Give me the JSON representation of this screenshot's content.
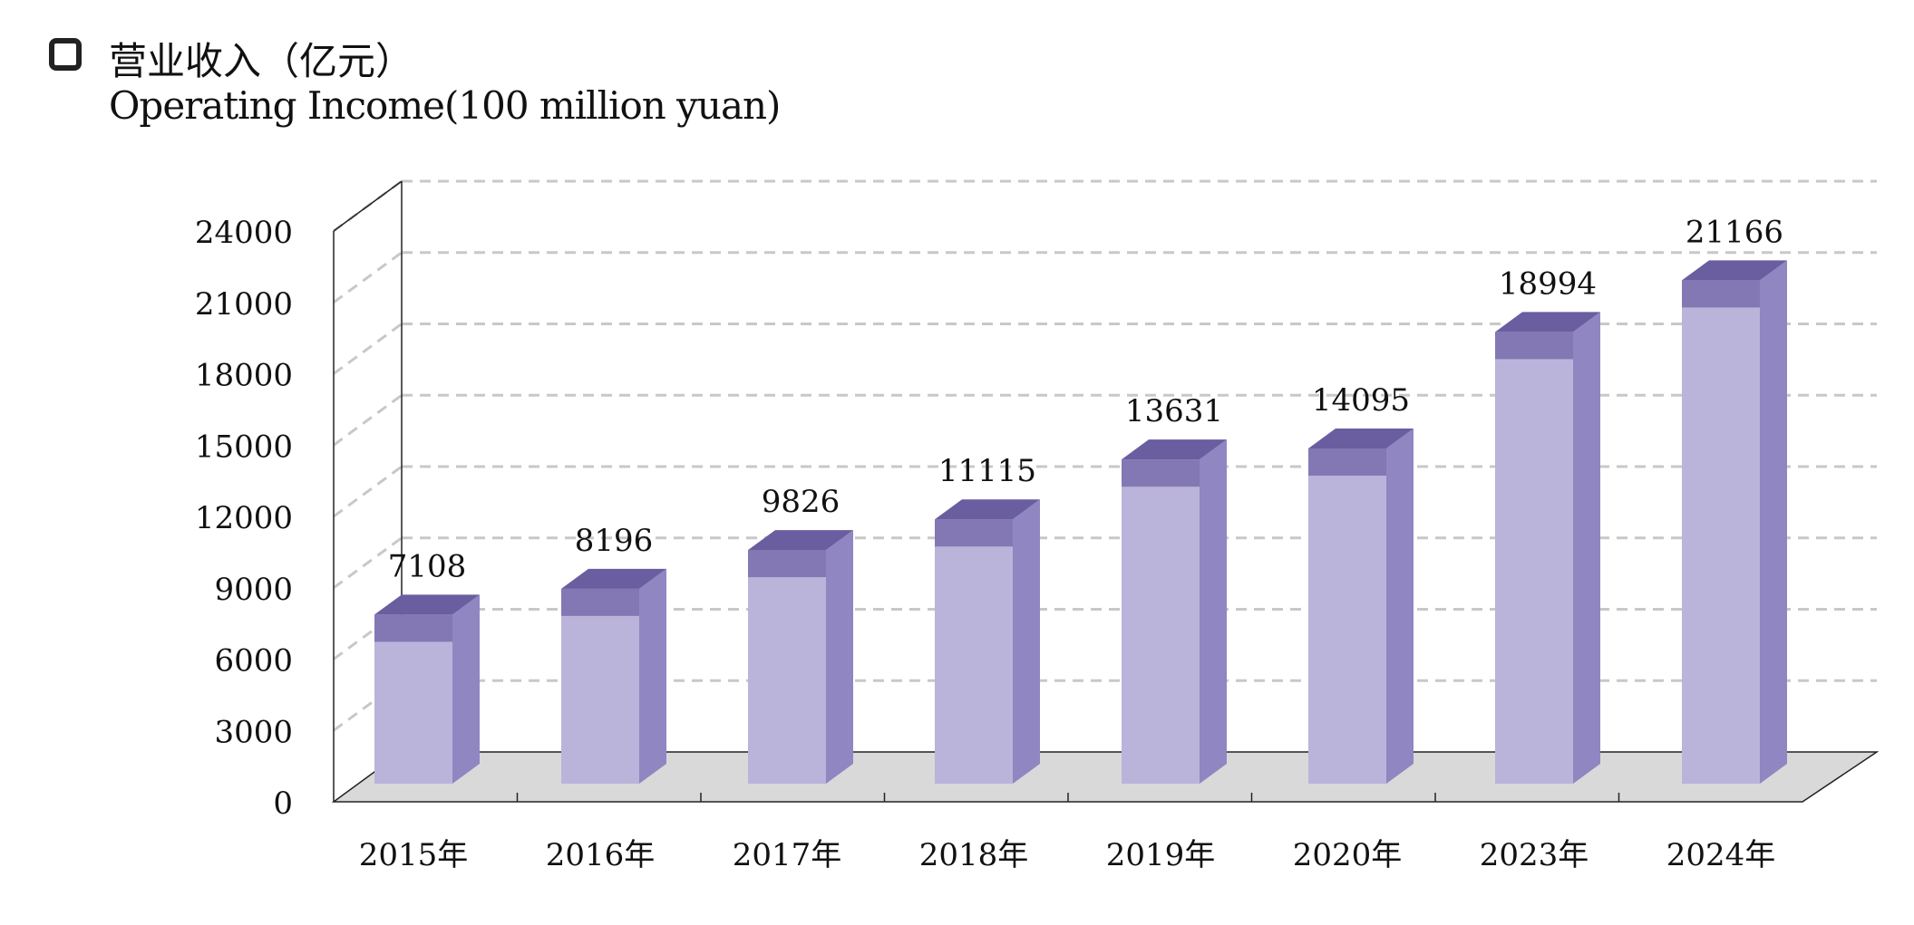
{
  "legend": {
    "title_cn": "营业收入（亿元）",
    "title_en": "Operating Income(100 million yuan)"
  },
  "chart_data": {
    "type": "bar",
    "title": "营业收入（亿元）",
    "subtitle": "Operating Income(100 million yuan)",
    "categories": [
      "2015年",
      "2016年",
      "2017年",
      "2018年",
      "2019年",
      "2020年",
      "2023年",
      "2024年"
    ],
    "values": [
      7108,
      8196,
      9826,
      11115,
      13631,
      14095,
      18994,
      21166
    ],
    "data_labels": [
      "7108",
      "8196",
      "9826",
      "11115",
      "13631",
      "14095",
      "18994",
      "21166"
    ],
    "yticks": [
      "0",
      "3000",
      "6000",
      "9000",
      "12000",
      "15000",
      "18000",
      "21000",
      "24000"
    ],
    "ylim": [
      0,
      24000
    ],
    "grid": true,
    "colors": {
      "bar_front": "#bab4da",
      "bar_top_band": "#8478b4",
      "bar_side": "#9086c2",
      "bar_top": "#6a5ea0",
      "floor": "#d9d9d9",
      "grid": "#c8c8c8"
    }
  }
}
